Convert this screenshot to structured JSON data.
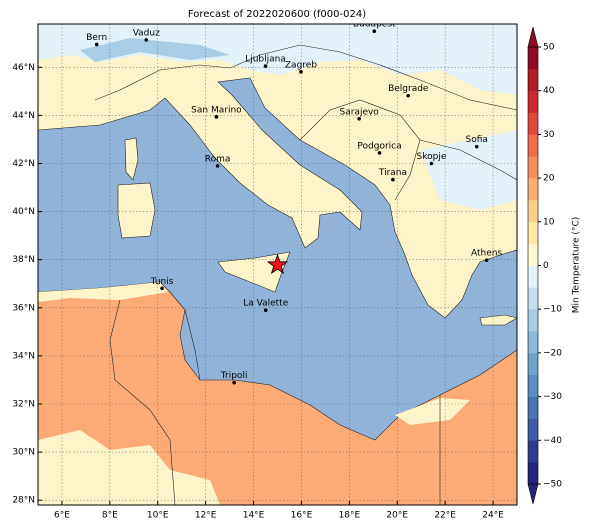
{
  "title": "Forecast of 2022020600 (f000-024)",
  "map": {
    "lon_range": [
      5,
      25
    ],
    "lat_range": [
      27.8,
      47.8
    ],
    "lon_ticks": [
      {
        "value": 6,
        "label": "6°E"
      },
      {
        "value": 8,
        "label": "8°E"
      },
      {
        "value": 10,
        "label": "10°E"
      },
      {
        "value": 12,
        "label": "12°E"
      },
      {
        "value": 14,
        "label": "14°E"
      },
      {
        "value": 16,
        "label": "16°E"
      },
      {
        "value": 18,
        "label": "18°E"
      },
      {
        "value": 20,
        "label": "20°E"
      },
      {
        "value": 22,
        "label": "22°E"
      },
      {
        "value": 24,
        "label": "24°E"
      }
    ],
    "lat_ticks": [
      {
        "value": 28,
        "label": "28°N"
      },
      {
        "value": 30,
        "label": "30°N"
      },
      {
        "value": 32,
        "label": "32°N"
      },
      {
        "value": 34,
        "label": "34°N"
      },
      {
        "value": 36,
        "label": "36°N"
      },
      {
        "value": 38,
        "label": "38°N"
      },
      {
        "value": 40,
        "label": "40°N"
      },
      {
        "value": 42,
        "label": "42°N"
      },
      {
        "value": 44,
        "label": "44°N"
      },
      {
        "value": 46,
        "label": "46°N"
      }
    ],
    "cities": [
      {
        "name": "Bern",
        "lon": 7.45,
        "lat": 46.95
      },
      {
        "name": "Vaduz",
        "lon": 9.52,
        "lat": 47.14
      },
      {
        "name": "Budapest",
        "lon": 19.04,
        "lat": 47.5
      },
      {
        "name": "Ljubljana",
        "lon": 14.5,
        "lat": 46.05
      },
      {
        "name": "Zagreb",
        "lon": 15.98,
        "lat": 45.81
      },
      {
        "name": "Belgrade",
        "lon": 20.46,
        "lat": 44.82
      },
      {
        "name": "San Marino",
        "lon": 12.45,
        "lat": 43.94
      },
      {
        "name": "Sarajevo",
        "lon": 18.41,
        "lat": 43.86
      },
      {
        "name": "Sofia",
        "lon": 23.32,
        "lat": 42.7
      },
      {
        "name": "Roma",
        "lon": 12.5,
        "lat": 41.9
      },
      {
        "name": "Podgorica",
        "lon": 19.26,
        "lat": 42.44
      },
      {
        "name": "Skopje",
        "lon": 21.43,
        "lat": 42.0
      },
      {
        "name": "Tirana",
        "lon": 19.82,
        "lat": 41.33
      },
      {
        "name": "Athens",
        "lon": 23.73,
        "lat": 37.98
      },
      {
        "name": "Tunis",
        "lon": 10.18,
        "lat": 36.81
      },
      {
        "name": "La Valette",
        "lon": 14.51,
        "lat": 35.9
      },
      {
        "name": "Tripoli",
        "lon": 13.19,
        "lat": 32.89
      }
    ],
    "star": {
      "lon": 15.0,
      "lat": 37.78
    }
  },
  "colorbar": {
    "label": "Min Temperature (°C)",
    "range": [
      -50,
      50
    ],
    "ticks": [
      {
        "value": -50,
        "label": "−50"
      },
      {
        "value": -40,
        "label": "−40"
      },
      {
        "value": -30,
        "label": "−30"
      },
      {
        "value": -20,
        "label": "−20"
      },
      {
        "value": -10,
        "label": "−10"
      },
      0,
      10,
      20,
      30,
      40,
      50
    ],
    "colors": [
      "#24247a",
      "#2f3b8f",
      "#3e5aa8",
      "#4a74b4",
      "#5b8cc2",
      "#6fa2cd",
      "#8cb8d9",
      "#a9cbe3",
      "#c6e0ee",
      "#e3f2f8",
      "#fdf7cf",
      "#fdeaa5",
      "#fdd08a",
      "#fcb071",
      "#f6905a",
      "#ef6e48",
      "#e0483a",
      "#cc2a30",
      "#b21d2a",
      "#8f0b25"
    ]
  }
}
